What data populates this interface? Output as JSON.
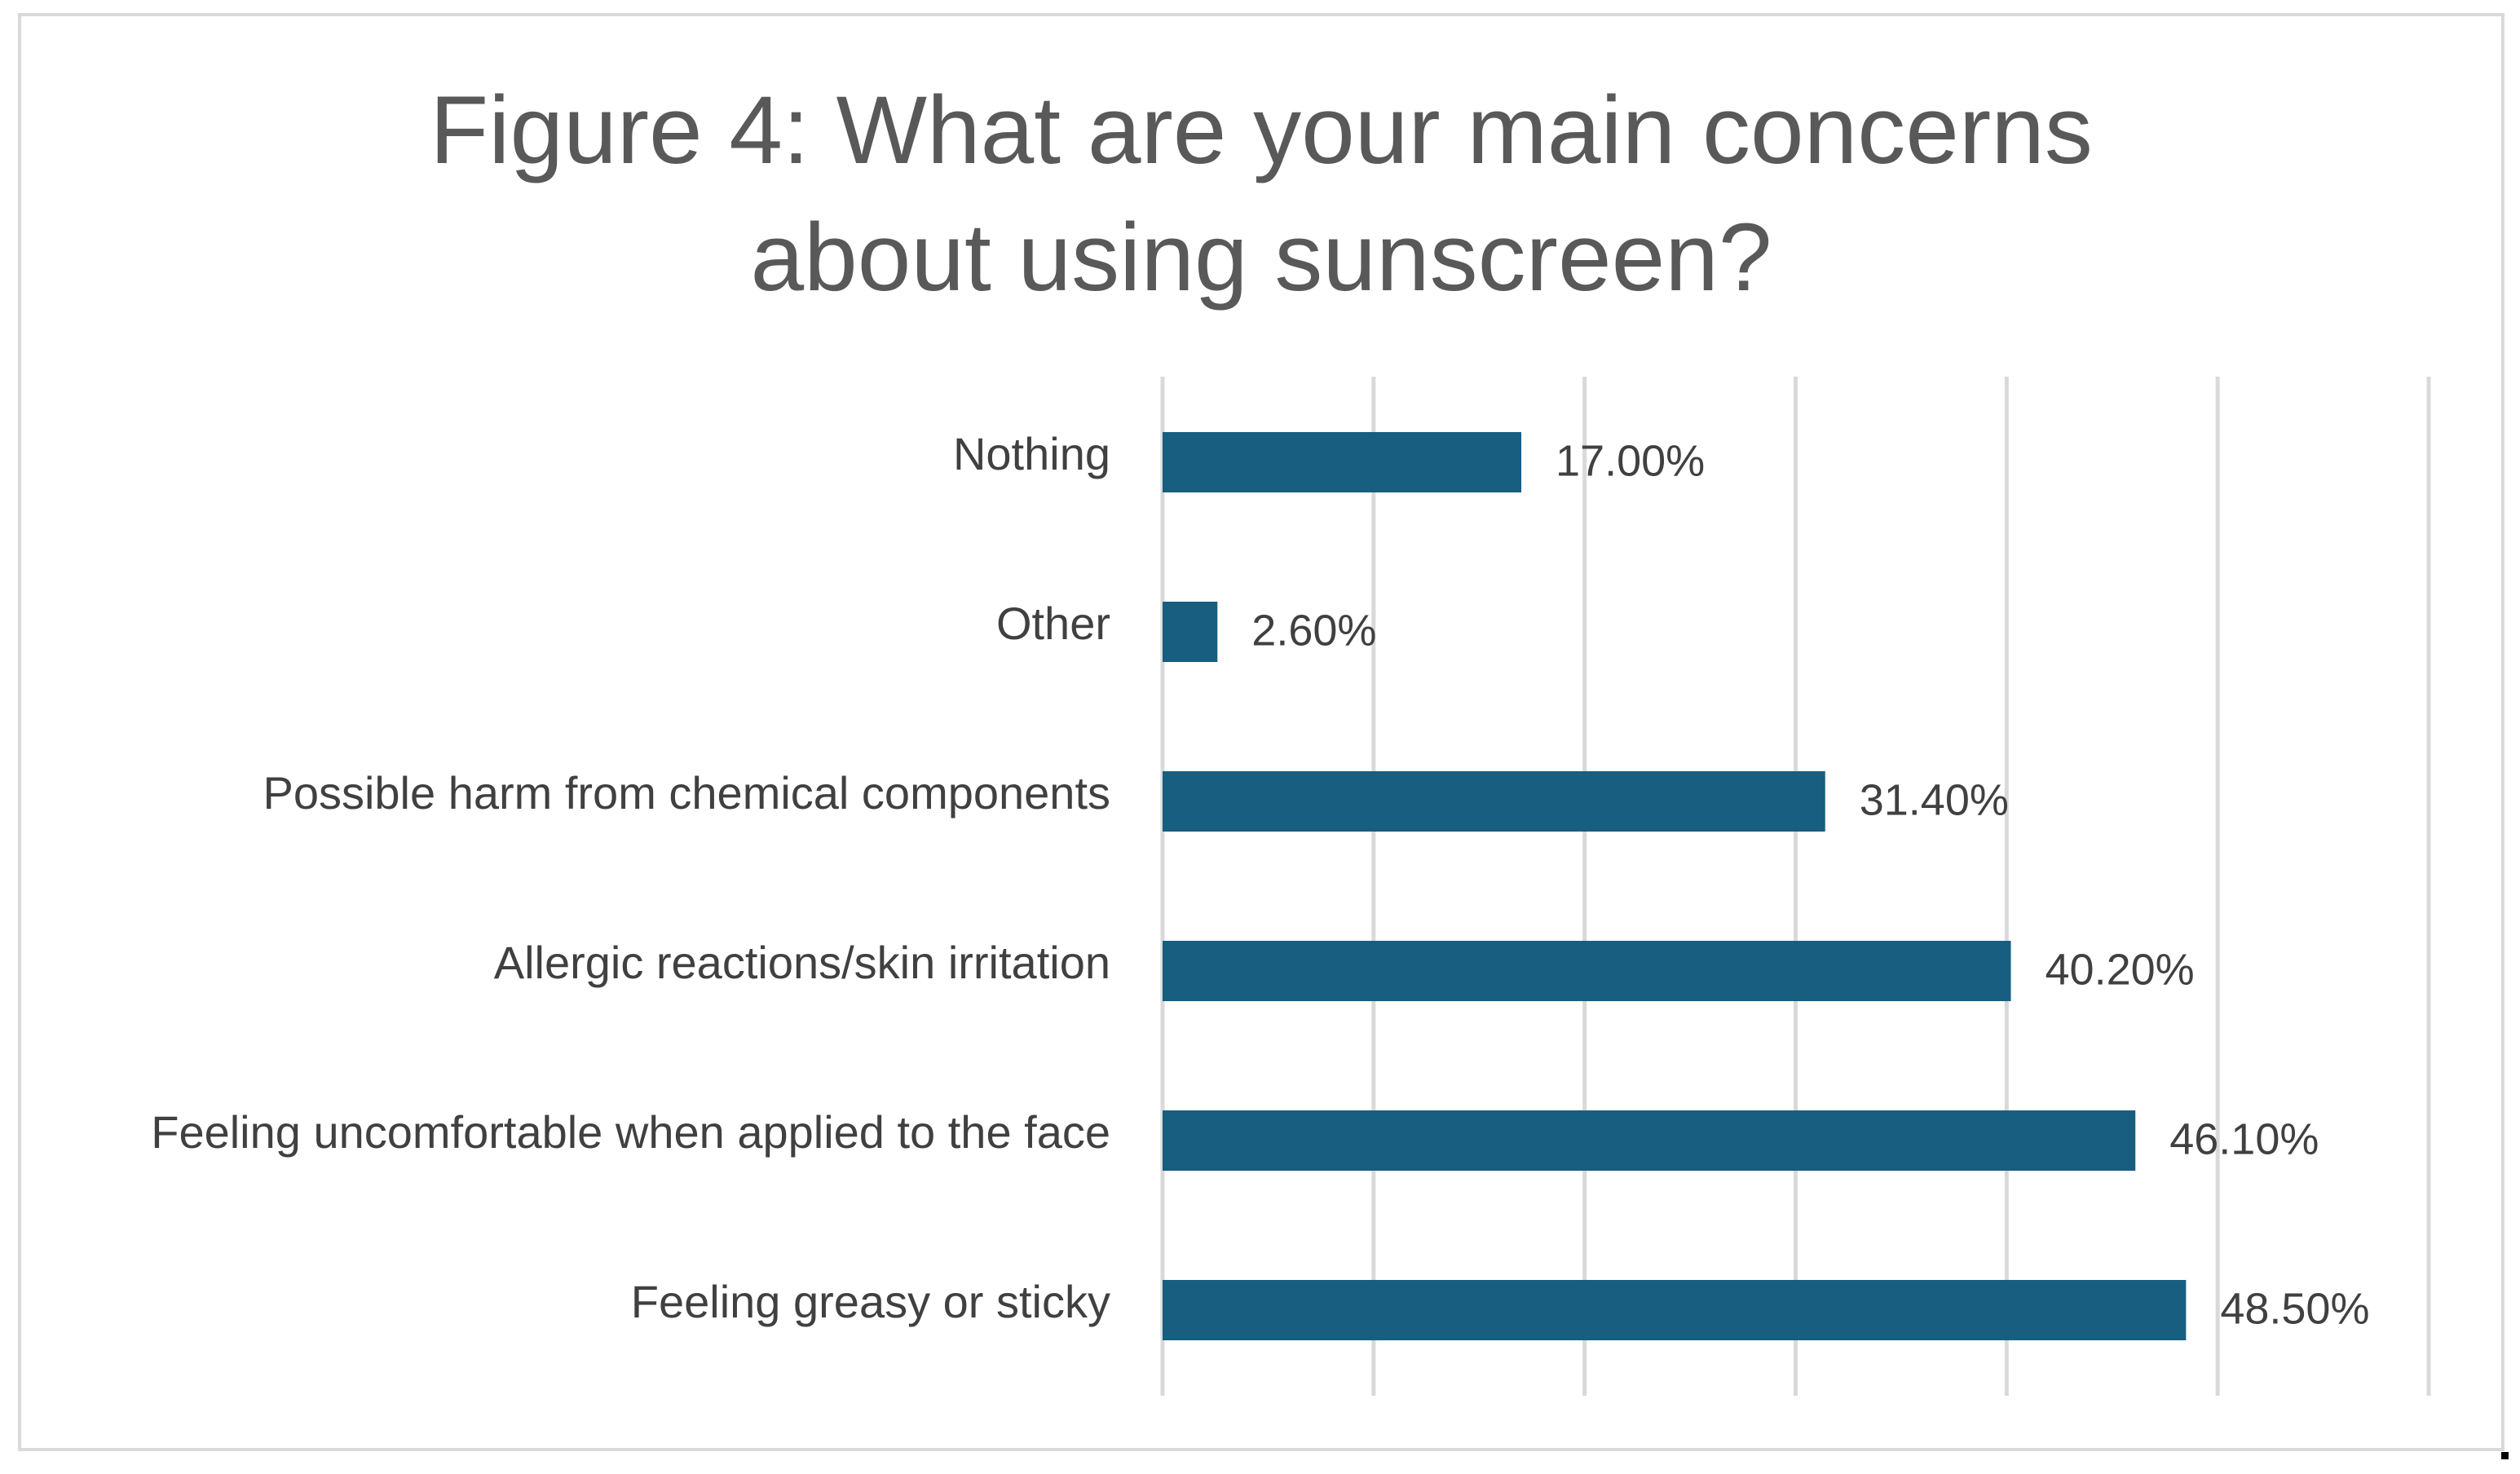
{
  "colors": {
    "bar": "#185e80",
    "gridline": "#d9d9d9",
    "title": "#595959",
    "text": "#404040",
    "border": "#d9d9d9"
  },
  "chart_data": {
    "type": "bar",
    "orientation": "horizontal",
    "title": "Figure 4: What are your main concerns\nabout using sunscreen?",
    "categories": [
      "Nothing",
      "Other",
      "Possible harm from chemical components",
      "Allergic reactions/skin irritation",
      "Feeling uncomfortable when applied to the face",
      "Feeling greasy or sticky"
    ],
    "values": [
      17.0,
      2.6,
      31.4,
      40.2,
      46.1,
      48.5
    ],
    "value_labels": [
      "17.00%",
      "2.60%",
      "31.40%",
      "40.20%",
      "46.10%",
      "48.50%"
    ],
    "xlim": [
      0,
      60
    ],
    "x_gridlines": [
      0,
      10,
      20,
      30,
      40,
      50,
      60
    ],
    "x_tick_labels_shown": false,
    "grid": true,
    "legend": "none"
  }
}
